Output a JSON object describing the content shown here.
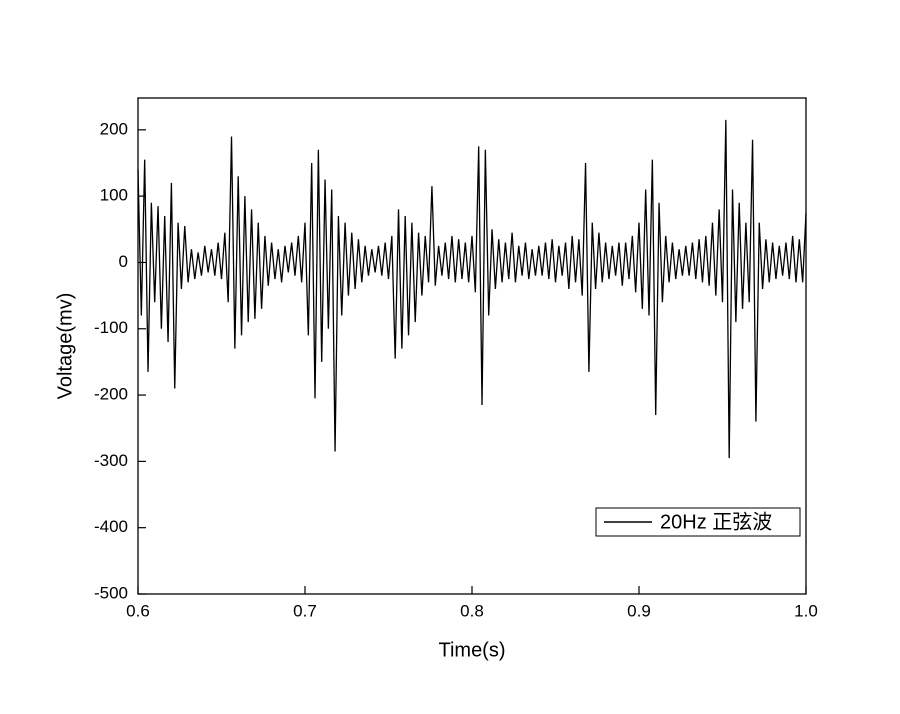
{
  "chart_data": {
    "type": "line",
    "x_label": "Time(s)",
    "y_label": "Voltage(mv)",
    "xlim": [
      0.6,
      1.0
    ],
    "ylim": [
      -500,
      248
    ],
    "xticks": [
      0.6,
      0.7,
      0.8,
      0.9,
      {
        "value": 1,
        "label": "1.0"
      }
    ],
    "yticks": [
      -500,
      -400,
      -300,
      -200,
      -100,
      0,
      100,
      200
    ],
    "grid": false,
    "legend": "lower right",
    "x": [
      0.6,
      0.602,
      0.604,
      0.606,
      0.608,
      0.61,
      0.612,
      0.614,
      0.616,
      0.618,
      0.62,
      0.622,
      0.624,
      0.626,
      0.628,
      0.63,
      0.632,
      0.634,
      0.636,
      0.638,
      0.64,
      0.642,
      0.644,
      0.646,
      0.648,
      0.65,
      0.652,
      0.654,
      0.656,
      0.658,
      0.66,
      0.662,
      0.664,
      0.666,
      0.668,
      0.67,
      0.672,
      0.674,
      0.676,
      0.678,
      0.68,
      0.682,
      0.684,
      0.686,
      0.688,
      0.69,
      0.692,
      0.694,
      0.696,
      0.698,
      0.7,
      0.702,
      0.704,
      0.706,
      0.708,
      0.71,
      0.712,
      0.714,
      0.716,
      0.718,
      0.72,
      0.722,
      0.724,
      0.726,
      0.728,
      0.73,
      0.732,
      0.734,
      0.736,
      0.738,
      0.74,
      0.742,
      0.744,
      0.746,
      0.748,
      0.75,
      0.752,
      0.754,
      0.756,
      0.758,
      0.76,
      0.762,
      0.764,
      0.766,
      0.768,
      0.77,
      0.772,
      0.774,
      0.776,
      0.778,
      0.78,
      0.782,
      0.784,
      0.786,
      0.788,
      0.79,
      0.792,
      0.794,
      0.796,
      0.798,
      0.8,
      0.802,
      0.804,
      0.806,
      0.808,
      0.81,
      0.812,
      0.814,
      0.816,
      0.818,
      0.82,
      0.822,
      0.824,
      0.826,
      0.828,
      0.83,
      0.832,
      0.834,
      0.836,
      0.838,
      0.84,
      0.842,
      0.844,
      0.846,
      0.848,
      0.85,
      0.852,
      0.854,
      0.856,
      0.858,
      0.86,
      0.862,
      0.864,
      0.866,
      0.868,
      0.87,
      0.872,
      0.874,
      0.876,
      0.878,
      0.88,
      0.882,
      0.884,
      0.886,
      0.888,
      0.89,
      0.892,
      0.894,
      0.896,
      0.898,
      0.9,
      0.902,
      0.904,
      0.906,
      0.908,
      0.91,
      0.912,
      0.914,
      0.916,
      0.918,
      0.92,
      0.922,
      0.924,
      0.926,
      0.928,
      0.93,
      0.932,
      0.934,
      0.936,
      0.938,
      0.94,
      0.942,
      0.944,
      0.946,
      0.948,
      0.95,
      0.952,
      0.954,
      0.956,
      0.958,
      0.96,
      0.962,
      0.964,
      0.966,
      0.968,
      0.97,
      0.972,
      0.974,
      0.976,
      0.978,
      0.98,
      0.982,
      0.984,
      0.986,
      0.988,
      0.99,
      0.992,
      0.994,
      0.996,
      0.998,
      1.0
    ],
    "series": [
      {
        "name": "20Hz 正弦波",
        "color": "#000000",
        "values": [
          140,
          -80,
          155,
          -165,
          90,
          -60,
          85,
          -100,
          70,
          -120,
          120,
          -190,
          60,
          -40,
          55,
          -30,
          20,
          -25,
          15,
          -20,
          25,
          -15,
          20,
          -20,
          30,
          -25,
          45,
          -60,
          190,
          -130,
          130,
          -110,
          100,
          -90,
          80,
          -85,
          60,
          -70,
          40,
          -35,
          30,
          -25,
          20,
          -30,
          25,
          -15,
          30,
          -20,
          40,
          -30,
          60,
          -110,
          150,
          -205,
          170,
          -150,
          125,
          -100,
          110,
          -285,
          70,
          -80,
          60,
          -50,
          45,
          -40,
          35,
          -30,
          25,
          -20,
          20,
          -15,
          25,
          -20,
          30,
          -25,
          40,
          -145,
          80,
          -130,
          70,
          -110,
          60,
          -90,
          45,
          -50,
          40,
          -30,
          115,
          -35,
          25,
          -20,
          30,
          -25,
          40,
          -30,
          35,
          -25,
          30,
          -30,
          40,
          -45,
          175,
          -215,
          170,
          -80,
          50,
          -40,
          35,
          -30,
          30,
          -25,
          45,
          -30,
          25,
          -20,
          30,
          -25,
          20,
          -20,
          25,
          -20,
          30,
          -25,
          35,
          -30,
          25,
          -20,
          30,
          -40,
          40,
          -30,
          35,
          -50,
          150,
          -165,
          60,
          -40,
          45,
          -30,
          30,
          -25,
          25,
          -20,
          30,
          -35,
          30,
          -25,
          40,
          -45,
          60,
          -70,
          110,
          -80,
          155,
          -230,
          90,
          -60,
          40,
          -30,
          30,
          -25,
          20,
          -20,
          25,
          -20,
          30,
          -25,
          35,
          -30,
          40,
          -35,
          60,
          -50,
          80,
          -60,
          215,
          -295,
          110,
          -90,
          90,
          -70,
          60,
          -60,
          185,
          -240,
          60,
          -40,
          35,
          -30,
          30,
          -25,
          25,
          -20,
          30,
          -25,
          40,
          -30,
          35,
          -30,
          75
        ]
      }
    ]
  }
}
